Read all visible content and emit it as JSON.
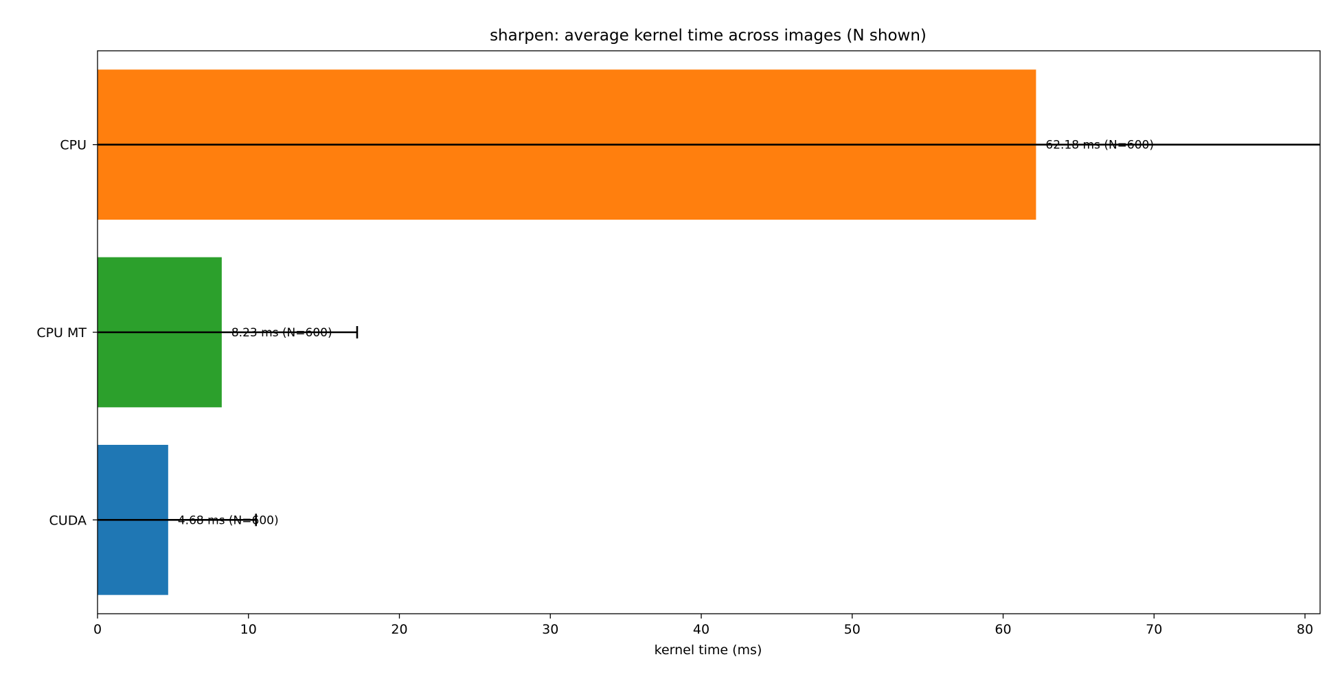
{
  "chart_data": {
    "type": "bar",
    "orientation": "horizontal",
    "title": "sharpen: average kernel time across images (N shown)",
    "xlabel": "kernel time (ms)",
    "ylabel": "",
    "xlim": [
      0,
      81
    ],
    "xticks": [
      0,
      10,
      20,
      30,
      40,
      50,
      60,
      70,
      80
    ],
    "grid": false,
    "categories": [
      "CPU",
      "CPU MT",
      "CUDA"
    ],
    "values": [
      62.18,
      8.23,
      4.68
    ],
    "error_upper": [
      81,
      17.2,
      10.5
    ],
    "error_lower": [
      0,
      0,
      0
    ],
    "counts": [
      600,
      600,
      600
    ],
    "data_labels": [
      "62.18 ms  (N=600)",
      "8.23 ms  (N=600)",
      "4.68 ms  (N=600)"
    ],
    "colors": [
      "#ff7f0e",
      "#2ca02c",
      "#1f77b4"
    ]
  }
}
